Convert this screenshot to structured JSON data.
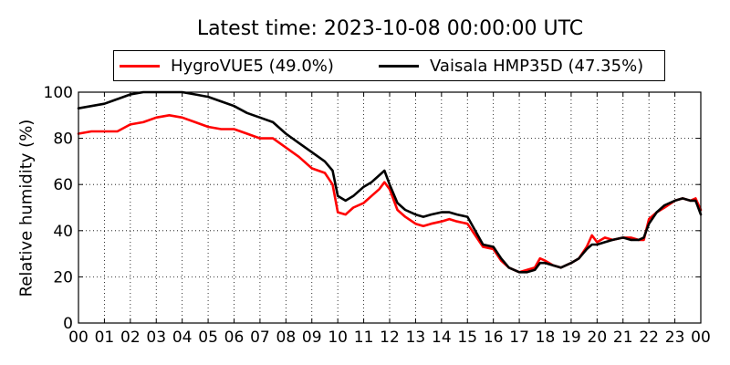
{
  "chart_data": {
    "type": "line",
    "title": "Latest time: 2023-10-08 00:00:00 UTC",
    "xlabel": "",
    "ylabel": "Relative humidity (%)",
    "xlim": [
      0,
      24
    ],
    "ylim": [
      0,
      100
    ],
    "grid": true,
    "legend_position": "top-center",
    "x_tick_labels": [
      "00",
      "01",
      "02",
      "03",
      "04",
      "05",
      "06",
      "07",
      "08",
      "09",
      "10",
      "11",
      "12",
      "13",
      "14",
      "15",
      "16",
      "17",
      "18",
      "19",
      "20",
      "21",
      "22",
      "23",
      "00"
    ],
    "y_tick_labels": [
      "0",
      "20",
      "40",
      "60",
      "80",
      "100"
    ],
    "series": [
      {
        "name": "HygroVUE5 (49.0%)",
        "color": "#ff0000",
        "x": [
          0,
          0.5,
          1,
          1.5,
          2,
          2.5,
          3,
          3.5,
          4,
          4.5,
          5,
          5.5,
          6,
          6.5,
          7,
          7.5,
          8,
          8.5,
          9,
          9.5,
          9.8,
          10,
          10.3,
          10.6,
          11,
          11.3,
          11.6,
          11.8,
          12,
          12.3,
          12.6,
          13,
          13.3,
          13.6,
          14,
          14.3,
          14.6,
          15,
          15.3,
          15.6,
          16,
          16.3,
          16.6,
          17,
          17.3,
          17.6,
          17.8,
          18,
          18.3,
          18.6,
          19,
          19.3,
          19.6,
          19.8,
          20,
          20.3,
          20.6,
          21,
          21.3,
          21.6,
          21.8,
          22,
          22.3,
          22.6,
          23,
          23.3,
          23.6,
          23.8,
          24
        ],
        "values": [
          82,
          83,
          83,
          83,
          86,
          87,
          89,
          90,
          89,
          87,
          85,
          84,
          84,
          82,
          80,
          80,
          76,
          72,
          67,
          65,
          60,
          48,
          47,
          50,
          52,
          55,
          58,
          61,
          58,
          49,
          46,
          43,
          42,
          43,
          44,
          45,
          44,
          43,
          38,
          33,
          32,
          27,
          24,
          22,
          23,
          24,
          28,
          27,
          25,
          24,
          26,
          28,
          33,
          38,
          35,
          37,
          36,
          37,
          37,
          36,
          36,
          45,
          48,
          50,
          53,
          54,
          53,
          54,
          49
        ]
      },
      {
        "name": "Vaisala HMP35D (47.35%)",
        "color": "#000000",
        "x": [
          0,
          0.5,
          1,
          1.5,
          2,
          2.5,
          3,
          3.5,
          4,
          4.5,
          5,
          5.5,
          6,
          6.5,
          7,
          7.5,
          8,
          8.5,
          9,
          9.5,
          9.8,
          10,
          10.3,
          10.6,
          11,
          11.3,
          11.6,
          11.8,
          12,
          12.3,
          12.6,
          13,
          13.3,
          13.6,
          14,
          14.3,
          14.6,
          15,
          15.3,
          15.6,
          16,
          16.3,
          16.6,
          17,
          17.3,
          17.6,
          17.8,
          18,
          18.3,
          18.6,
          19,
          19.3,
          19.6,
          19.8,
          20,
          20.3,
          20.6,
          21,
          21.3,
          21.6,
          21.8,
          22,
          22.3,
          22.6,
          23,
          23.3,
          23.6,
          23.8,
          24
        ],
        "values": [
          93,
          94,
          95,
          97,
          99,
          100,
          100,
          100,
          100,
          99,
          98,
          96,
          94,
          91,
          89,
          87,
          82,
          78,
          74,
          70,
          66,
          55,
          53,
          55,
          59,
          61,
          64,
          66,
          60,
          52,
          49,
          47,
          46,
          47,
          48,
          48,
          47,
          46,
          40,
          34,
          33,
          28,
          24,
          22,
          22,
          23,
          26,
          26,
          25,
          24,
          26,
          28,
          32,
          34,
          34,
          35,
          36,
          37,
          36,
          36,
          37,
          43,
          48,
          51,
          53,
          54,
          53,
          53,
          47
        ]
      }
    ]
  }
}
